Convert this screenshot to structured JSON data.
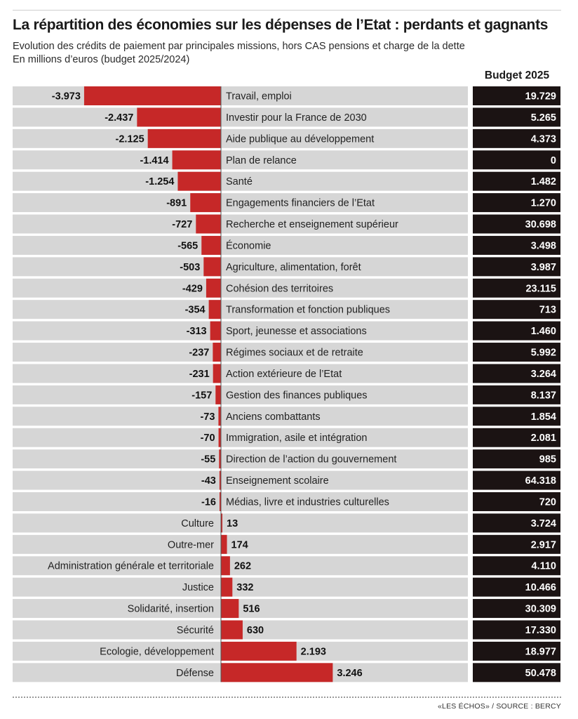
{
  "title": "La répartition des économies sur les dépenses de l’Etat : perdants et gagnants",
  "subtitle": "Evolution des crédits de paiement par principales missions, hors CAS pensions et charge de la dette",
  "subtitle2": "En millions d’euros (budget 2025/2024)",
  "budget_header": "Budget 2025",
  "source": "«LES ÉCHOS» / SOURCE : BERCY",
  "colors": {
    "bar": "#c62828",
    "row_bg": "#d6d6d6",
    "budget_bg": "#1b1313",
    "budget_text": "#ffffff"
  },
  "chart_data": {
    "type": "bar",
    "orientation": "horizontal",
    "categories": [
      "Travail, emploi",
      "Investir pour la France de 2030",
      "Aide publique au développement",
      "Plan de relance",
      "Santé",
      "Engagements financiers de l’Etat",
      "Recherche et enseignement supérieur",
      "Économie",
      "Agriculture, alimentation, forêt",
      "Cohésion des territoires",
      "Transformation et fonction publiques",
      "Sport, jeunesse et associations",
      "Régimes sociaux et de retraite",
      "Action extérieure de l’Etat",
      "Gestion des finances publiques",
      "Anciens combattants",
      "Immigration, asile et intégration",
      "Direction de l’action du gouvernement",
      "Enseignement scolaire",
      "Médias, livre et industries culturelles",
      "Culture",
      "Outre-mer",
      "Administration générale et territoriale",
      "Justice",
      "Solidarité, insertion",
      "Sécurité",
      "Ecologie, développement",
      "Défense"
    ],
    "values": [
      -3973,
      -2437,
      -2125,
      -1414,
      -1254,
      -891,
      -727,
      -565,
      -503,
      -429,
      -354,
      -313,
      -237,
      -231,
      -157,
      -73,
      -70,
      -55,
      -43,
      -16,
      13,
      174,
      262,
      332,
      516,
      630,
      2193,
      3246
    ],
    "value_labels": [
      "-3.973",
      "-2.437",
      "-2.125",
      "-1.414",
      "-1.254",
      "-891",
      "-727",
      "-565",
      "-503",
      "-429",
      "-354",
      "-313",
      "-237",
      "-231",
      "-157",
      "-73",
      "-70",
      "-55",
      "-43",
      "-16",
      "13",
      "174",
      "262",
      "332",
      "516",
      "630",
      "2.193",
      "3.246"
    ],
    "budget_2025": [
      "19.729",
      "5.265",
      "4.373",
      "0",
      "1.482",
      "1.270",
      "30.698",
      "3.498",
      "3.987",
      "23.115",
      "713",
      "1.460",
      "5.992",
      "3.264",
      "8.137",
      "1.854",
      "2.081",
      "985",
      "64.318",
      "720",
      "3.724",
      "2.917",
      "4.110",
      "10.466",
      "30.309",
      "17.330",
      "18.977",
      "50.478"
    ],
    "unit": "millions d’euros"
  }
}
